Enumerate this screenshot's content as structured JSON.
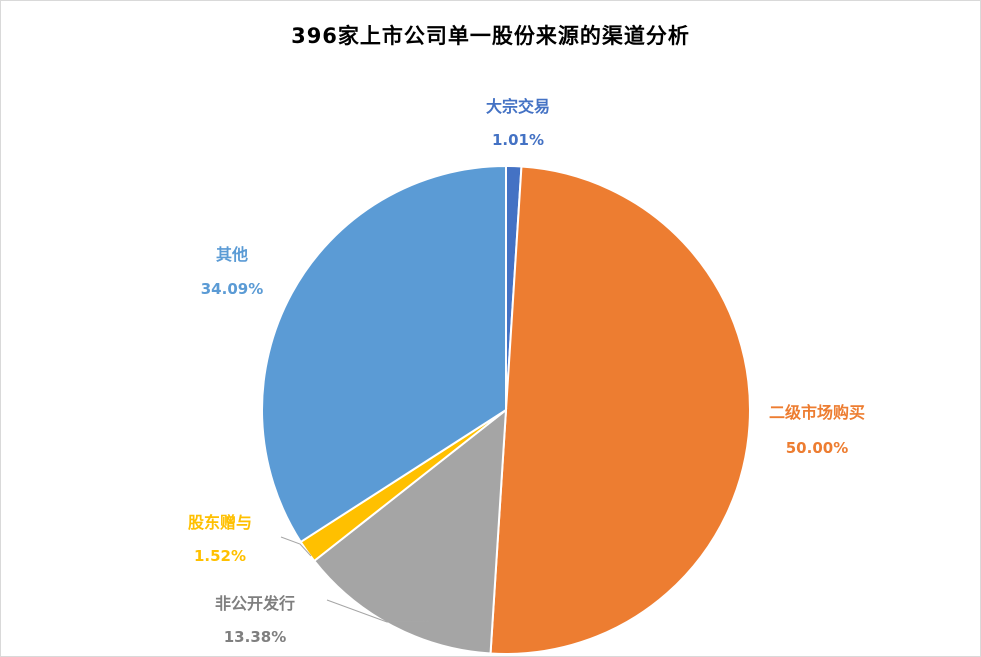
{
  "chart_data": {
    "type": "pie",
    "title": "396家上市公司单一股份来源的渠道分析",
    "slices": [
      {
        "label": "大宗交易",
        "value": 1.01,
        "percent_label": "1.01%",
        "color": "#4472C4"
      },
      {
        "label": "二级市场购买",
        "value": 50.0,
        "percent_label": "50.00%",
        "color": "#ED7D31"
      },
      {
        "label": "非公开发行",
        "value": 13.38,
        "percent_label": "13.38%",
        "color": "#A5A5A5"
      },
      {
        "label": "股东赠与",
        "value": 1.52,
        "percent_label": "1.52%",
        "color": "#FFC000"
      },
      {
        "label": "其他",
        "value": 34.09,
        "percent_label": "34.09%",
        "color": "#5B9BD5"
      }
    ]
  }
}
